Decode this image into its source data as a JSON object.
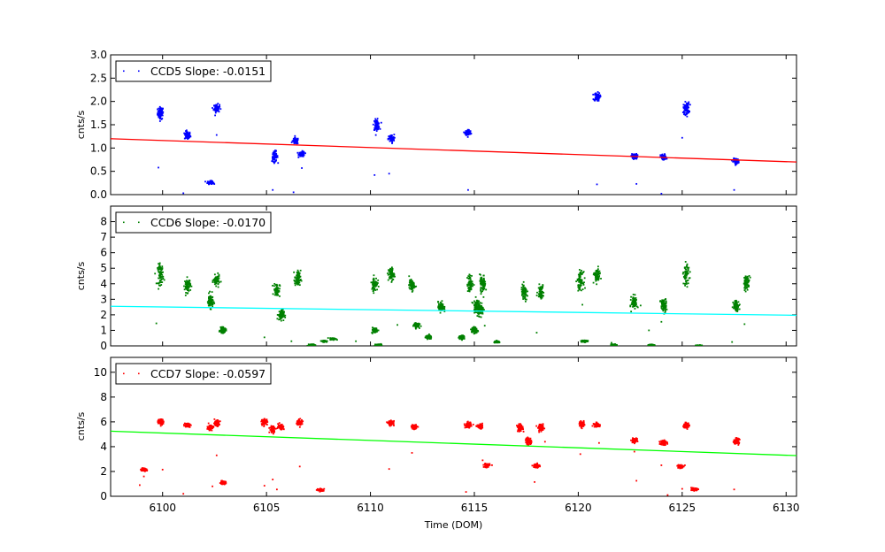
{
  "chart_data": [
    {
      "type": "scatter",
      "ylabel": "cnts/s",
      "xlabel": "",
      "xlim": [
        6097.5,
        6130.5
      ],
      "ylim": [
        0,
        3.0
      ],
      "yticks": [
        0.0,
        0.5,
        1.0,
        1.5,
        2.0,
        2.5,
        3.0
      ],
      "ytick_labels": [
        "0.0",
        "0.5",
        "1.0",
        "1.5",
        "2.0",
        "2.5",
        "3.0"
      ],
      "point_color": "#0000ff",
      "fit_color": "#ff0000",
      "legend": "CCD5 Slope: -0.0151",
      "fit": {
        "x": [
          6097.5,
          6130.5
        ],
        "y": [
          1.2,
          0.7
        ]
      },
      "clusters": [
        {
          "x": 6099.9,
          "y": 1.75,
          "spread": 0.12
        },
        {
          "x": 6101.2,
          "y": 1.27,
          "spread": 0.08
        },
        {
          "x": 6102.3,
          "y": 0.26,
          "spread": 0.03
        },
        {
          "x": 6102.6,
          "y": 1.85,
          "spread": 0.08
        },
        {
          "x": 6105.4,
          "y": 0.82,
          "spread": 0.1
        },
        {
          "x": 6106.4,
          "y": 1.15,
          "spread": 0.06
        },
        {
          "x": 6106.7,
          "y": 0.87,
          "spread": 0.05
        },
        {
          "x": 6110.3,
          "y": 1.5,
          "spread": 0.1
        },
        {
          "x": 6111.0,
          "y": 1.2,
          "spread": 0.08
        },
        {
          "x": 6114.7,
          "y": 1.33,
          "spread": 0.06
        },
        {
          "x": 6120.9,
          "y": 2.1,
          "spread": 0.08
        },
        {
          "x": 6122.7,
          "y": 0.82,
          "spread": 0.05
        },
        {
          "x": 6124.1,
          "y": 0.8,
          "spread": 0.06
        },
        {
          "x": 6125.2,
          "y": 1.85,
          "spread": 0.12
        },
        {
          "x": 6127.6,
          "y": 0.72,
          "spread": 0.05
        }
      ],
      "outliers": [
        [
          6099.8,
          0.58
        ],
        [
          6101.0,
          0.03
        ],
        [
          6102.6,
          1.28
        ],
        [
          6105.3,
          0.1
        ],
        [
          6106.3,
          0.05
        ],
        [
          6110.2,
          0.42
        ],
        [
          6110.9,
          0.45
        ],
        [
          6114.7,
          0.1
        ],
        [
          6120.9,
          0.22
        ],
        [
          6122.8,
          0.23
        ],
        [
          6124.0,
          0.02
        ],
        [
          6125.0,
          1.22
        ],
        [
          6127.5,
          0.1
        ],
        [
          6106.7,
          0.57
        ]
      ]
    },
    {
      "type": "scatter",
      "ylabel": "cnts/s",
      "xlabel": "",
      "xlim": [
        6097.5,
        6130.5
      ],
      "ylim": [
        0,
        9.0
      ],
      "yticks": [
        0,
        1,
        2,
        3,
        4,
        5,
        6,
        7,
        8
      ],
      "ytick_labels": [
        "0",
        "1",
        "2",
        "3",
        "4",
        "5",
        "6",
        "7",
        "8"
      ],
      "point_color": "#008000",
      "fit_color": "#00ffff",
      "legend": "CCD6 Slope: -0.0170",
      "fit": {
        "x": [
          6097.5,
          6130.5
        ],
        "y": [
          2.55,
          1.97
        ]
      },
      "clusters": [
        {
          "x": 6099.9,
          "y": 4.6,
          "spread": 0.6
        },
        {
          "x": 6101.2,
          "y": 3.9,
          "spread": 0.4
        },
        {
          "x": 6102.3,
          "y": 2.9,
          "spread": 0.4
        },
        {
          "x": 6102.6,
          "y": 4.2,
          "spread": 0.3
        },
        {
          "x": 6102.9,
          "y": 1.0,
          "spread": 0.15
        },
        {
          "x": 6105.5,
          "y": 3.6,
          "spread": 0.4
        },
        {
          "x": 6105.7,
          "y": 2.0,
          "spread": 0.3
        },
        {
          "x": 6106.5,
          "y": 4.3,
          "spread": 0.5
        },
        {
          "x": 6107.2,
          "y": 0.05,
          "spread": 0.05
        },
        {
          "x": 6107.8,
          "y": 0.3,
          "spread": 0.05
        },
        {
          "x": 6108.2,
          "y": 0.45,
          "spread": 0.05
        },
        {
          "x": 6110.2,
          "y": 4.0,
          "spread": 0.4
        },
        {
          "x": 6110.2,
          "y": 1.0,
          "spread": 0.15
        },
        {
          "x": 6110.4,
          "y": 0.05,
          "spread": 0.05
        },
        {
          "x": 6111.0,
          "y": 4.6,
          "spread": 0.4
        },
        {
          "x": 6112.0,
          "y": 3.9,
          "spread": 0.3
        },
        {
          "x": 6112.2,
          "y": 1.35,
          "spread": 0.15
        },
        {
          "x": 6112.8,
          "y": 0.55,
          "spread": 0.1
        },
        {
          "x": 6113.4,
          "y": 2.5,
          "spread": 0.3
        },
        {
          "x": 6114.4,
          "y": 0.55,
          "spread": 0.1
        },
        {
          "x": 6114.8,
          "y": 4.0,
          "spread": 0.5
        },
        {
          "x": 6115.1,
          "y": 2.6,
          "spread": 0.4
        },
        {
          "x": 6115.0,
          "y": 1.0,
          "spread": 0.2
        },
        {
          "x": 6115.4,
          "y": 4.0,
          "spread": 0.5
        },
        {
          "x": 6115.3,
          "y": 2.3,
          "spread": 0.3
        },
        {
          "x": 6116.1,
          "y": 0.25,
          "spread": 0.05
        },
        {
          "x": 6117.4,
          "y": 3.4,
          "spread": 0.5
        },
        {
          "x": 6118.2,
          "y": 3.5,
          "spread": 0.4
        },
        {
          "x": 6120.1,
          "y": 4.2,
          "spread": 0.5
        },
        {
          "x": 6120.3,
          "y": 0.3,
          "spread": 0.05
        },
        {
          "x": 6120.9,
          "y": 4.5,
          "spread": 0.4
        },
        {
          "x": 6121.7,
          "y": 0.05,
          "spread": 0.05
        },
        {
          "x": 6122.7,
          "y": 2.8,
          "spread": 0.4
        },
        {
          "x": 6123.5,
          "y": 0.05,
          "spread": 0.03
        },
        {
          "x": 6124.1,
          "y": 2.6,
          "spread": 0.4
        },
        {
          "x": 6125.2,
          "y": 4.6,
          "spread": 0.6
        },
        {
          "x": 6125.8,
          "y": 0.02,
          "spread": 0.02
        },
        {
          "x": 6127.6,
          "y": 2.6,
          "spread": 0.3
        },
        {
          "x": 6128.1,
          "y": 4.1,
          "spread": 0.4
        }
      ],
      "outliers": [
        [
          6099.7,
          1.45
        ],
        [
          6104.9,
          0.55
        ],
        [
          6106.2,
          0.3
        ],
        [
          6109.3,
          0.3
        ],
        [
          6111.3,
          1.35
        ],
        [
          6115.5,
          1.3
        ],
        [
          6118.0,
          0.85
        ],
        [
          6120.2,
          2.65
        ],
        [
          6121.6,
          0.2
        ],
        [
          6123.4,
          1.0
        ],
        [
          6124.0,
          1.55
        ],
        [
          6127.4,
          0.25
        ],
        [
          6128.0,
          1.4
        ]
      ]
    },
    {
      "type": "scatter",
      "ylabel": "cnts/s",
      "xlabel": "Time (DOM)",
      "xlim": [
        6097.5,
        6130.5
      ],
      "ylim": [
        0,
        11.2
      ],
      "yticks": [
        0,
        2,
        4,
        6,
        8,
        10
      ],
      "ytick_labels": [
        "0",
        "2",
        "4",
        "6",
        "8",
        "10"
      ],
      "xticks": [
        6100,
        6105,
        6110,
        6115,
        6120,
        6125,
        6130
      ],
      "xtick_labels": [
        "6100",
        "6105",
        "6110",
        "6115",
        "6120",
        "6125",
        "6130"
      ],
      "point_color": "#ff0000",
      "fit_color": "#00ff00",
      "legend": "CCD7 Slope: -0.0597",
      "fit": {
        "x": [
          6097.5,
          6130.5
        ],
        "y": [
          5.25,
          3.28
        ]
      },
      "clusters": [
        {
          "x": 6099.1,
          "y": 2.15,
          "spread": 0.1
        },
        {
          "x": 6099.9,
          "y": 6.0,
          "spread": 0.2
        },
        {
          "x": 6101.2,
          "y": 5.75,
          "spread": 0.15
        },
        {
          "x": 6102.3,
          "y": 5.55,
          "spread": 0.2
        },
        {
          "x": 6102.6,
          "y": 5.9,
          "spread": 0.2
        },
        {
          "x": 6102.9,
          "y": 1.1,
          "spread": 0.1
        },
        {
          "x": 6104.9,
          "y": 6.0,
          "spread": 0.2
        },
        {
          "x": 6105.3,
          "y": 5.4,
          "spread": 0.25
        },
        {
          "x": 6105.7,
          "y": 5.6,
          "spread": 0.2
        },
        {
          "x": 6106.6,
          "y": 5.95,
          "spread": 0.2
        },
        {
          "x": 6107.6,
          "y": 0.5,
          "spread": 0.1
        },
        {
          "x": 6111.0,
          "y": 5.9,
          "spread": 0.15
        },
        {
          "x": 6112.1,
          "y": 5.6,
          "spread": 0.15
        },
        {
          "x": 6114.7,
          "y": 5.75,
          "spread": 0.2
        },
        {
          "x": 6115.3,
          "y": 5.6,
          "spread": 0.15
        },
        {
          "x": 6115.6,
          "y": 2.5,
          "spread": 0.15
        },
        {
          "x": 6117.2,
          "y": 5.5,
          "spread": 0.25
        },
        {
          "x": 6117.6,
          "y": 4.45,
          "spread": 0.25
        },
        {
          "x": 6118.0,
          "y": 2.45,
          "spread": 0.15
        },
        {
          "x": 6118.2,
          "y": 5.5,
          "spread": 0.25
        },
        {
          "x": 6120.2,
          "y": 5.8,
          "spread": 0.2
        },
        {
          "x": 6120.9,
          "y": 5.75,
          "spread": 0.15
        },
        {
          "x": 6122.7,
          "y": 4.5,
          "spread": 0.15
        },
        {
          "x": 6124.1,
          "y": 4.35,
          "spread": 0.2
        },
        {
          "x": 6124.9,
          "y": 2.4,
          "spread": 0.15
        },
        {
          "x": 6125.2,
          "y": 5.7,
          "spread": 0.2
        },
        {
          "x": 6125.6,
          "y": 0.55,
          "spread": 0.08
        },
        {
          "x": 6127.6,
          "y": 4.45,
          "spread": 0.2
        }
      ],
      "outliers": [
        [
          6098.9,
          0.9
        ],
        [
          6099.1,
          1.6
        ],
        [
          6100.0,
          2.15
        ],
        [
          6101.0,
          0.2
        ],
        [
          6102.6,
          3.3
        ],
        [
          6102.4,
          0.8
        ],
        [
          6104.9,
          0.85
        ],
        [
          6105.3,
          1.35
        ],
        [
          6105.5,
          0.55
        ],
        [
          6106.6,
          2.4
        ],
        [
          6110.9,
          2.2
        ],
        [
          6112.0,
          3.5
        ],
        [
          6114.6,
          0.35
        ],
        [
          6115.4,
          2.9
        ],
        [
          6117.9,
          1.15
        ],
        [
          6118.4,
          4.4
        ],
        [
          6120.1,
          3.4
        ],
        [
          6121.0,
          4.3
        ],
        [
          6122.7,
          3.6
        ],
        [
          6122.8,
          1.25
        ],
        [
          6124.0,
          2.5
        ],
        [
          6124.3,
          0.1
        ],
        [
          6125.0,
          0.6
        ],
        [
          6127.5,
          0.55
        ]
      ]
    }
  ]
}
